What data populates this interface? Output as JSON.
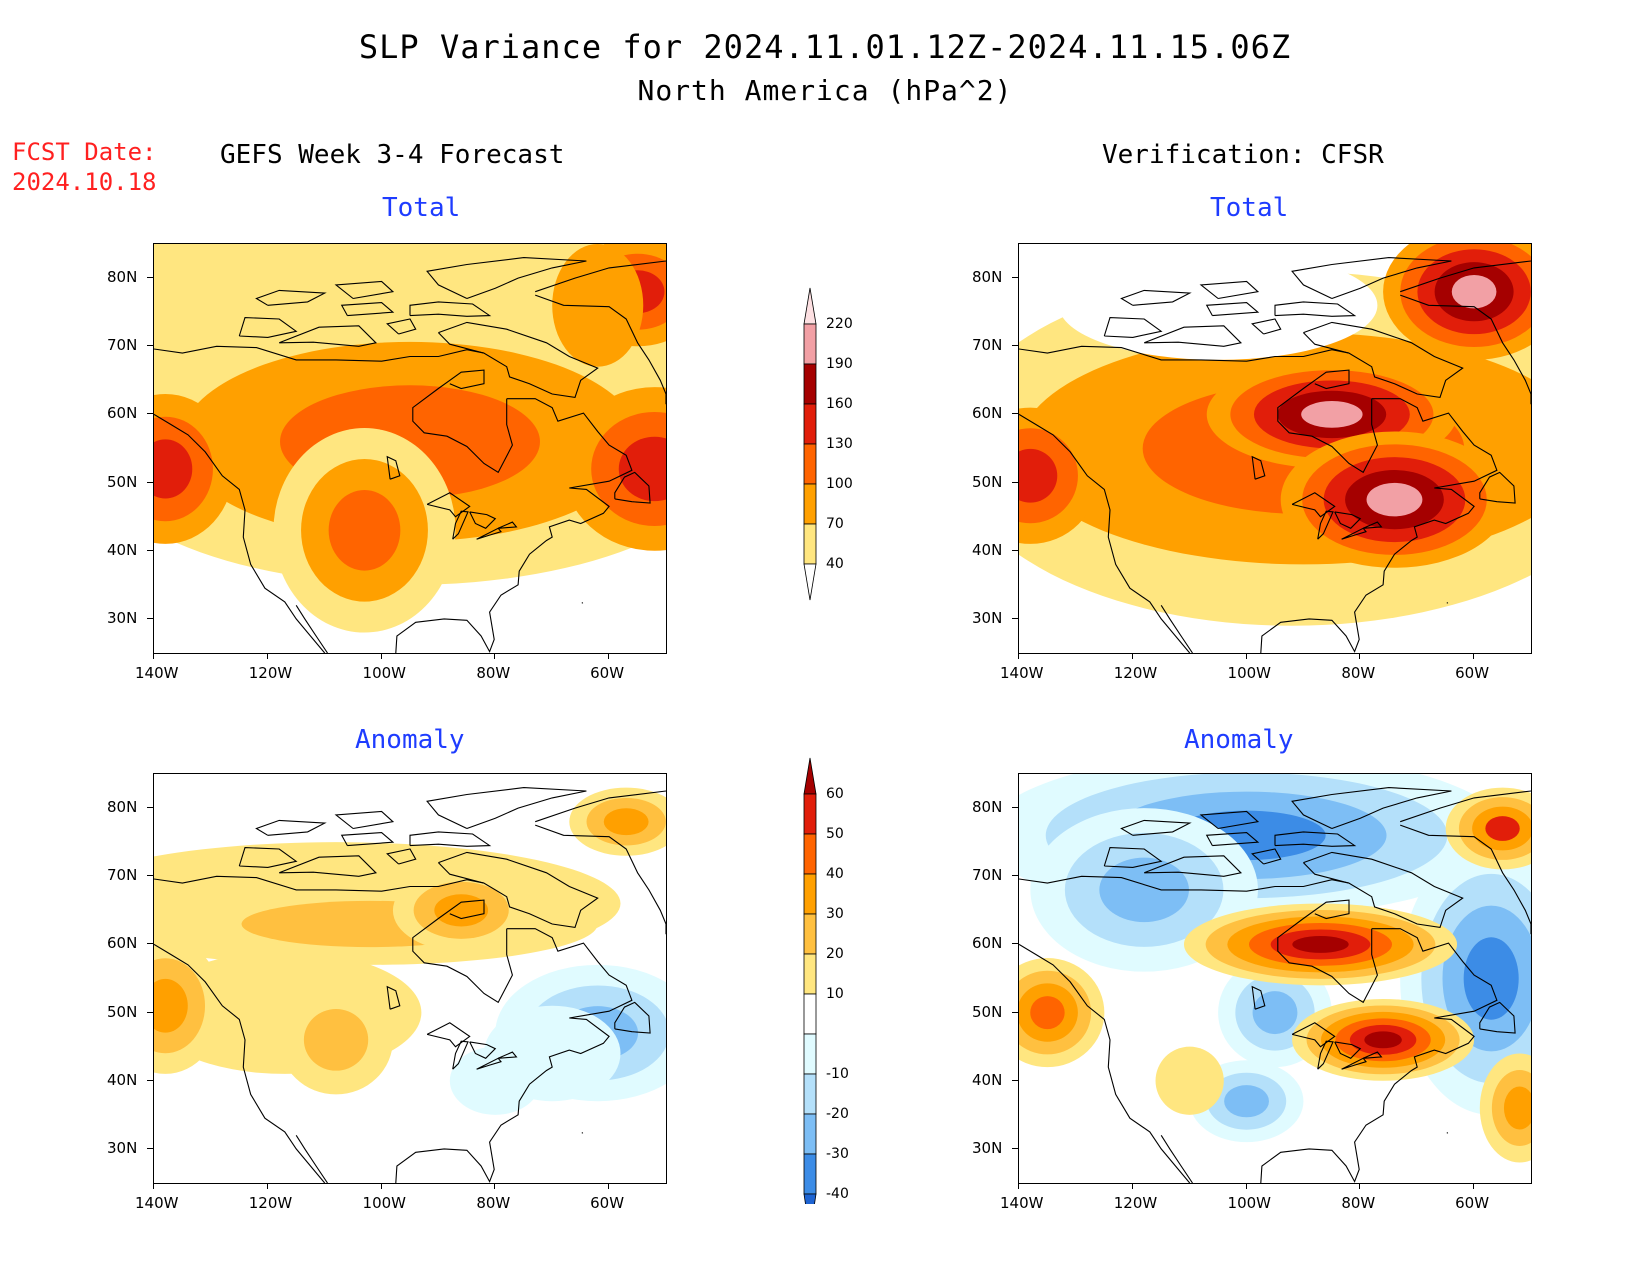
{
  "header": {
    "title": "SLP Variance for 2024.11.01.12Z-2024.11.15.06Z",
    "subtitle": "North America (hPa^2)",
    "fcst_label": "FCST Date:",
    "fcst_date": "2024.10.18",
    "left_column_title": "GEFS Week 3-4 Forecast",
    "right_column_title": "Verification: CFSR"
  },
  "panels": {
    "forecast_total": {
      "label": "Total"
    },
    "forecast_anomaly": {
      "label": "Anomaly"
    },
    "verif_total": {
      "label": "Total"
    },
    "verif_anomaly": {
      "label": "Anomaly"
    }
  },
  "axes": {
    "lat_labels": [
      "80N",
      "70N",
      "60N",
      "50N",
      "40N",
      "30N"
    ],
    "lon_labels": [
      "140W",
      "120W",
      "100W",
      "80W",
      "60W"
    ]
  },
  "colorbars": {
    "total": {
      "levels": [
        "40",
        "70",
        "100",
        "130",
        "160",
        "190",
        "220"
      ],
      "colors": [
        "#ffe680",
        "#ffa000",
        "#ff6400",
        "#e11e0a",
        "#a50000",
        "#f2a0a5",
        "#fde0e2"
      ]
    },
    "anomaly": {
      "levels": [
        "60",
        "50",
        "40",
        "30",
        "20",
        "10",
        "-10",
        "-20",
        "-30",
        "-40"
      ],
      "colors": [
        "#a50000",
        "#e11e0a",
        "#ff6400",
        "#ffa000",
        "#ffc040",
        "#ffe680",
        "#ffffff",
        "#e0fbff",
        "#b4e0fa",
        "#7dbef5",
        "#3c8ce6",
        "#1e64d2"
      ]
    }
  },
  "chart_data": [
    {
      "type": "heatmap",
      "title": "GEFS Week 3-4 Forecast — Total",
      "units": "hPa^2",
      "xlim": [
        "140W",
        "50W"
      ],
      "ylim": [
        "25N",
        "85N"
      ],
      "features": [
        {
          "region": "broad band 45N-70N across Canada",
          "range": "100-130"
        },
        {
          "region": "Pacific coast near 52N",
          "range": "130-160"
        },
        {
          "region": "Labrador Sea near 52N 55W",
          "range": "130-160"
        },
        {
          "region": "Greenland near 77N",
          "range": "130-160"
        },
        {
          "region": "Arctic archipelago",
          "range": "40-70"
        },
        {
          "region": "southern US",
          "range": "below 40"
        }
      ]
    },
    {
      "type": "heatmap",
      "title": "Verification: CFSR — Total",
      "units": "hPa^2",
      "xlim": [
        "140W",
        "50W"
      ],
      "ylim": [
        "25N",
        "85N"
      ],
      "features": [
        {
          "region": "Hudson Bay near 60N 85W",
          "range": "190-220"
        },
        {
          "region": "Great Lakes / New England near 48N 70W",
          "range": "190-220"
        },
        {
          "region": "Greenland near 75N 52W",
          "range": "190-220"
        },
        {
          "region": "Pacific coast near 52N",
          "range": "130-160"
        },
        {
          "region": "Arctic archipelago",
          "range": "below 40"
        }
      ]
    },
    {
      "type": "heatmap",
      "title": "GEFS Week 3-4 Forecast — Anomaly",
      "units": "hPa^2",
      "xlim": [
        "140W",
        "50W"
      ],
      "ylim": [
        "25N",
        "85N"
      ],
      "features": [
        {
          "region": "Hudson Bay near 65N 85W",
          "range": "30-40"
        },
        {
          "region": "Pacific coast near 52N",
          "range": "30-40"
        },
        {
          "region": "Nova Scotia near 48N 60W",
          "range": "-30 to -20"
        },
        {
          "region": "Greenland near 77N",
          "range": "20-30"
        }
      ]
    },
    {
      "type": "heatmap",
      "title": "Verification: CFSR — Anomaly",
      "units": "hPa^2",
      "xlim": [
        "140W",
        "50W"
      ],
      "ylim": [
        "25N",
        "85N"
      ],
      "features": [
        {
          "region": "Hudson Bay near 60N 85W",
          "range": "above 60"
        },
        {
          "region": "Great Lakes / New England near 46N 75W",
          "range": "above 60"
        },
        {
          "region": "Labrador Sea near 50N 55W",
          "range": "-40 to -30"
        },
        {
          "region": "Arctic archipelago near 75N 110W",
          "range": "-40 to -30"
        },
        {
          "region": "Pacific coast near 50N",
          "range": "30-40"
        },
        {
          "region": "Atlantic near 35N 52W",
          "range": "20-30"
        }
      ]
    }
  ]
}
